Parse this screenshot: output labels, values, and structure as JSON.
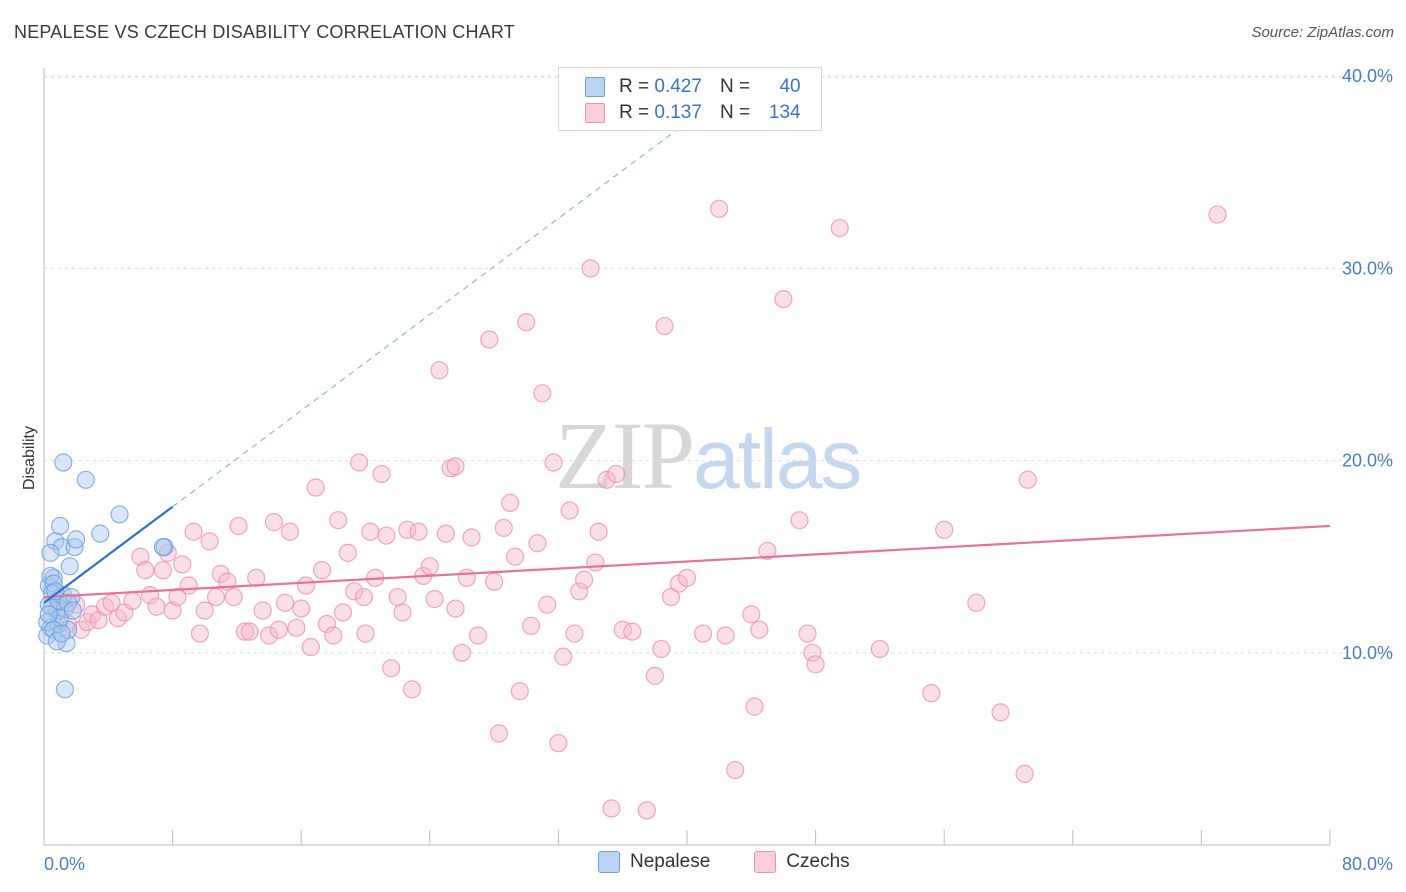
{
  "header": {
    "title": "NEPALESE VS CZECH DISABILITY CORRELATION CHART",
    "source": "Source: ZipAtlas.com"
  },
  "watermark": {
    "zip": "ZIP",
    "atlas": "atlas"
  },
  "legend_top": {
    "rows": [
      {
        "r_label": "R =",
        "r_value": "0.427",
        "n_label": "N =",
        "n_value": "40",
        "color": "#a9c8f0"
      },
      {
        "r_label": "R =",
        "r_value": "0.137",
        "n_label": "N =",
        "n_value": "134",
        "color": "#f6b8cb"
      }
    ]
  },
  "legend_bottom": {
    "items": [
      {
        "label": "Nepalese",
        "color": "#a9c8f0"
      },
      {
        "label": "Czechs",
        "color": "#f6b8cb"
      }
    ]
  },
  "chart_data": {
    "type": "scatter",
    "title": "NEPALESE VS CZECH DISABILITY CORRELATION CHART",
    "xlabel": "",
    "ylabel": "Disability",
    "xlim": [
      0,
      80
    ],
    "ylim": [
      0,
      42
    ],
    "x_tick_labels": [
      "0.0%",
      "80.0%"
    ],
    "y_ticks": [
      10,
      20,
      30,
      40
    ],
    "y_tick_labels": [
      "10.0%",
      "20.0%",
      "30.0%",
      "40.0%"
    ],
    "grid": true,
    "legend_placement": "top-center",
    "series": [
      {
        "name": "Nepalese",
        "color": "#6aa0e0",
        "fill": "#a9c8f0",
        "trend": {
          "x0": 0,
          "y0": 12.6,
          "x1": 8,
          "y1": 17.6,
          "extend_to_x": 42,
          "dashed_extension": true,
          "line_color": "#2f6fcf"
        },
        "points": [
          [
            0.3,
            13.5
          ],
          [
            0.5,
            12.4
          ],
          [
            0.6,
            13.9
          ],
          [
            0.7,
            15.8
          ],
          [
            0.8,
            12.2
          ],
          [
            0.4,
            11.3
          ],
          [
            0.2,
            10.9
          ],
          [
            0.9,
            11.5
          ],
          [
            1.0,
            16.6
          ],
          [
            1.1,
            15.5
          ],
          [
            1.2,
            13.0
          ],
          [
            1.3,
            12.3
          ],
          [
            1.4,
            10.5
          ],
          [
            1.5,
            11.2
          ],
          [
            1.6,
            14.5
          ],
          [
            1.7,
            12.9
          ],
          [
            1.9,
            15.5
          ],
          [
            2.0,
            15.9
          ],
          [
            1.2,
            19.9
          ],
          [
            2.6,
            19.0
          ],
          [
            3.5,
            16.2
          ],
          [
            4.7,
            17.2
          ],
          [
            7.5,
            15.5
          ],
          [
            7.4,
            15.5
          ],
          [
            1.3,
            8.1
          ],
          [
            0.4,
            14.0
          ],
          [
            0.6,
            13.6
          ],
          [
            0.5,
            13.1
          ],
          [
            0.3,
            12.5
          ],
          [
            0.9,
            12.7
          ],
          [
            1.0,
            11.8
          ],
          [
            0.2,
            11.6
          ],
          [
            0.6,
            11.2
          ],
          [
            0.8,
            10.6
          ],
          [
            1.1,
            11.0
          ],
          [
            0.4,
            15.2
          ],
          [
            0.7,
            13.2
          ],
          [
            1.5,
            12.6
          ],
          [
            0.3,
            12.0
          ],
          [
            1.8,
            12.2
          ]
        ]
      },
      {
        "name": "Czechs",
        "color": "#ee8fae",
        "fill": "#f6b8cb",
        "trend": {
          "x0": 0,
          "y0": 12.9,
          "x1": 80,
          "y1": 16.6,
          "line_color": "#e8709a"
        },
        "points": [
          [
            0.5,
            11.8
          ],
          [
            1.0,
            12.2
          ],
          [
            1.5,
            11.5
          ],
          [
            2.0,
            12.5
          ],
          [
            2.3,
            11.2
          ],
          [
            2.7,
            11.6
          ],
          [
            3.0,
            12.0
          ],
          [
            3.4,
            11.7
          ],
          [
            3.8,
            12.4
          ],
          [
            4.2,
            12.6
          ],
          [
            4.6,
            11.8
          ],
          [
            5.0,
            12.1
          ],
          [
            5.5,
            12.7
          ],
          [
            6.0,
            15.0
          ],
          [
            6.3,
            14.3
          ],
          [
            6.6,
            13.0
          ],
          [
            7.0,
            12.4
          ],
          [
            7.4,
            14.3
          ],
          [
            7.7,
            15.2
          ],
          [
            8.0,
            12.2
          ],
          [
            8.3,
            12.9
          ],
          [
            8.6,
            14.6
          ],
          [
            9.0,
            13.5
          ],
          [
            9.3,
            16.3
          ],
          [
            9.7,
            11.0
          ],
          [
            10.0,
            12.2
          ],
          [
            10.3,
            15.8
          ],
          [
            10.7,
            12.9
          ],
          [
            11.0,
            14.1
          ],
          [
            11.4,
            13.7
          ],
          [
            11.8,
            12.9
          ],
          [
            12.1,
            16.6
          ],
          [
            12.5,
            11.1
          ],
          [
            12.8,
            11.1
          ],
          [
            13.2,
            13.9
          ],
          [
            13.6,
            12.2
          ],
          [
            14.0,
            10.9
          ],
          [
            14.3,
            16.8
          ],
          [
            14.6,
            11.2
          ],
          [
            15.0,
            12.6
          ],
          [
            15.3,
            16.3
          ],
          [
            15.7,
            11.3
          ],
          [
            16.0,
            12.3
          ],
          [
            16.3,
            13.5
          ],
          [
            16.6,
            10.3
          ],
          [
            16.9,
            18.6
          ],
          [
            17.3,
            14.3
          ],
          [
            17.6,
            11.5
          ],
          [
            18.0,
            10.9
          ],
          [
            18.3,
            16.9
          ],
          [
            18.6,
            12.1
          ],
          [
            18.9,
            15.2
          ],
          [
            19.3,
            13.2
          ],
          [
            19.6,
            19.9
          ],
          [
            19.9,
            12.9
          ],
          [
            20.3,
            16.3
          ],
          [
            20.6,
            13.9
          ],
          [
            21.0,
            19.3
          ],
          [
            21.3,
            16.1
          ],
          [
            21.6,
            9.2
          ],
          [
            22.0,
            12.9
          ],
          [
            22.3,
            12.1
          ],
          [
            22.6,
            16.4
          ],
          [
            22.9,
            8.1
          ],
          [
            23.3,
            16.3
          ],
          [
            23.6,
            14.0
          ],
          [
            24.0,
            14.5
          ],
          [
            24.3,
            12.8
          ],
          [
            24.6,
            24.7
          ],
          [
            25.0,
            16.2
          ],
          [
            25.3,
            19.6
          ],
          [
            25.6,
            19.7
          ],
          [
            26.0,
            10.0
          ],
          [
            26.3,
            13.9
          ],
          [
            26.6,
            16.0
          ],
          [
            27.0,
            10.9
          ],
          [
            27.7,
            26.3
          ],
          [
            28.0,
            13.7
          ],
          [
            28.3,
            5.8
          ],
          [
            28.6,
            16.5
          ],
          [
            29.0,
            17.8
          ],
          [
            29.3,
            15.0
          ],
          [
            29.6,
            8.0
          ],
          [
            30.0,
            27.2
          ],
          [
            30.3,
            11.4
          ],
          [
            30.7,
            15.7
          ],
          [
            31.0,
            23.5
          ],
          [
            31.3,
            12.5
          ],
          [
            31.7,
            19.9
          ],
          [
            32.0,
            5.3
          ],
          [
            32.3,
            9.8
          ],
          [
            32.7,
            17.4
          ],
          [
            33.0,
            11.0
          ],
          [
            33.3,
            13.2
          ],
          [
            33.6,
            13.8
          ],
          [
            34.0,
            30.0
          ],
          [
            34.3,
            14.7
          ],
          [
            35.0,
            19.0
          ],
          [
            35.3,
            1.9
          ],
          [
            35.6,
            19.3
          ],
          [
            36.0,
            11.2
          ],
          [
            36.6,
            11.1
          ],
          [
            37.5,
            1.8
          ],
          [
            38.0,
            8.8
          ],
          [
            38.6,
            27.0
          ],
          [
            39.0,
            12.9
          ],
          [
            39.5,
            13.6
          ],
          [
            40.0,
            13.9
          ],
          [
            41.0,
            11.0
          ],
          [
            42.0,
            33.1
          ],
          [
            42.4,
            10.9
          ],
          [
            43.0,
            3.9
          ],
          [
            44.2,
            7.2
          ],
          [
            44.5,
            11.2
          ],
          [
            45.0,
            15.3
          ],
          [
            46.0,
            28.4
          ],
          [
            47.0,
            16.9
          ],
          [
            47.5,
            11.0
          ],
          [
            47.8,
            10.0
          ],
          [
            48.0,
            9.4
          ],
          [
            49.5,
            32.1
          ],
          [
            52.0,
            10.2
          ],
          [
            55.2,
            7.9
          ],
          [
            56.0,
            16.4
          ],
          [
            58.0,
            12.6
          ],
          [
            59.5,
            6.9
          ],
          [
            61.0,
            3.7
          ],
          [
            61.2,
            19.0
          ],
          [
            73.0,
            32.8
          ],
          [
            20.0,
            11.0
          ],
          [
            25.6,
            12.3
          ],
          [
            34.5,
            16.3
          ],
          [
            44.0,
            12.0
          ],
          [
            38.4,
            10.2
          ]
        ]
      }
    ]
  }
}
